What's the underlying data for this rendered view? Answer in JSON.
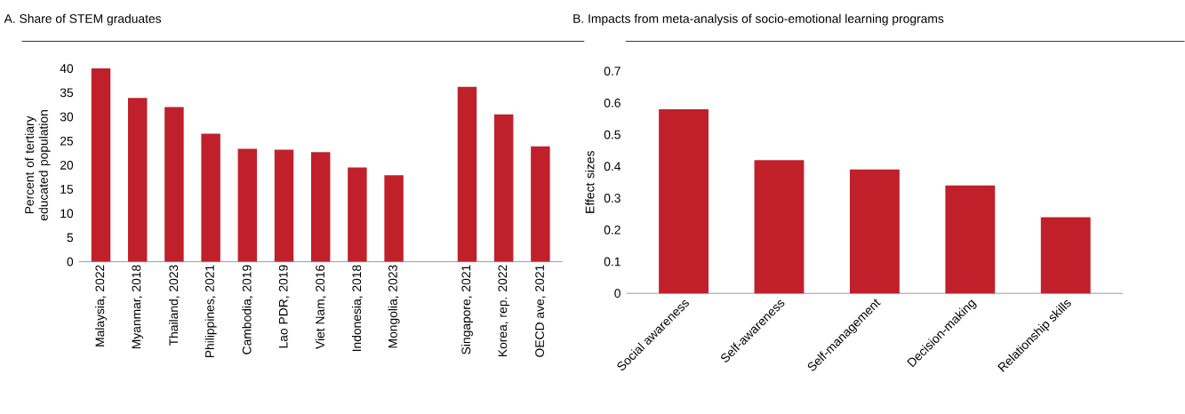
{
  "chart_data": [
    {
      "type": "bar",
      "title": "A. Share of STEM graduates",
      "ylabel": "Percent of tertiary educated population",
      "categories": [
        "Malaysia, 2022",
        "Myanmar, 2018",
        "Thailand, 2023",
        "Philippines, 2021",
        "Cambodia, 2019",
        "Lao PDR, 2019",
        "Viet Nam, 2016",
        "Indonesia, 2018",
        "Mongolia, 2023",
        null,
        "Singapore, 2021",
        "Korea, rep. 2022",
        "OECD ave, 2021"
      ],
      "values": [
        40,
        33.9,
        32.0,
        26.5,
        23.4,
        23.2,
        22.7,
        19.5,
        17.9,
        null,
        36.2,
        30.5,
        23.9
      ],
      "color": "#c0202a",
      "ylim": [
        0,
        40
      ],
      "yticks": [
        0,
        5,
        10,
        15,
        20,
        25,
        30,
        35,
        40
      ]
    },
    {
      "type": "bar",
      "title": "B. Impacts from meta-analysis of socio-emotional learning programs",
      "ylabel": "Effect sizes",
      "categories": [
        "Social awareness",
        "Self-awareness",
        "Self-management",
        "Decision-making",
        "Relationship skills"
      ],
      "values": [
        0.58,
        0.42,
        0.39,
        0.34,
        0.24
      ],
      "color": "#c0202a",
      "ylim": [
        0,
        0.7
      ],
      "yticks": [
        0,
        0.1,
        0.2,
        0.3,
        0.4,
        0.5,
        0.6,
        0.7
      ]
    }
  ]
}
